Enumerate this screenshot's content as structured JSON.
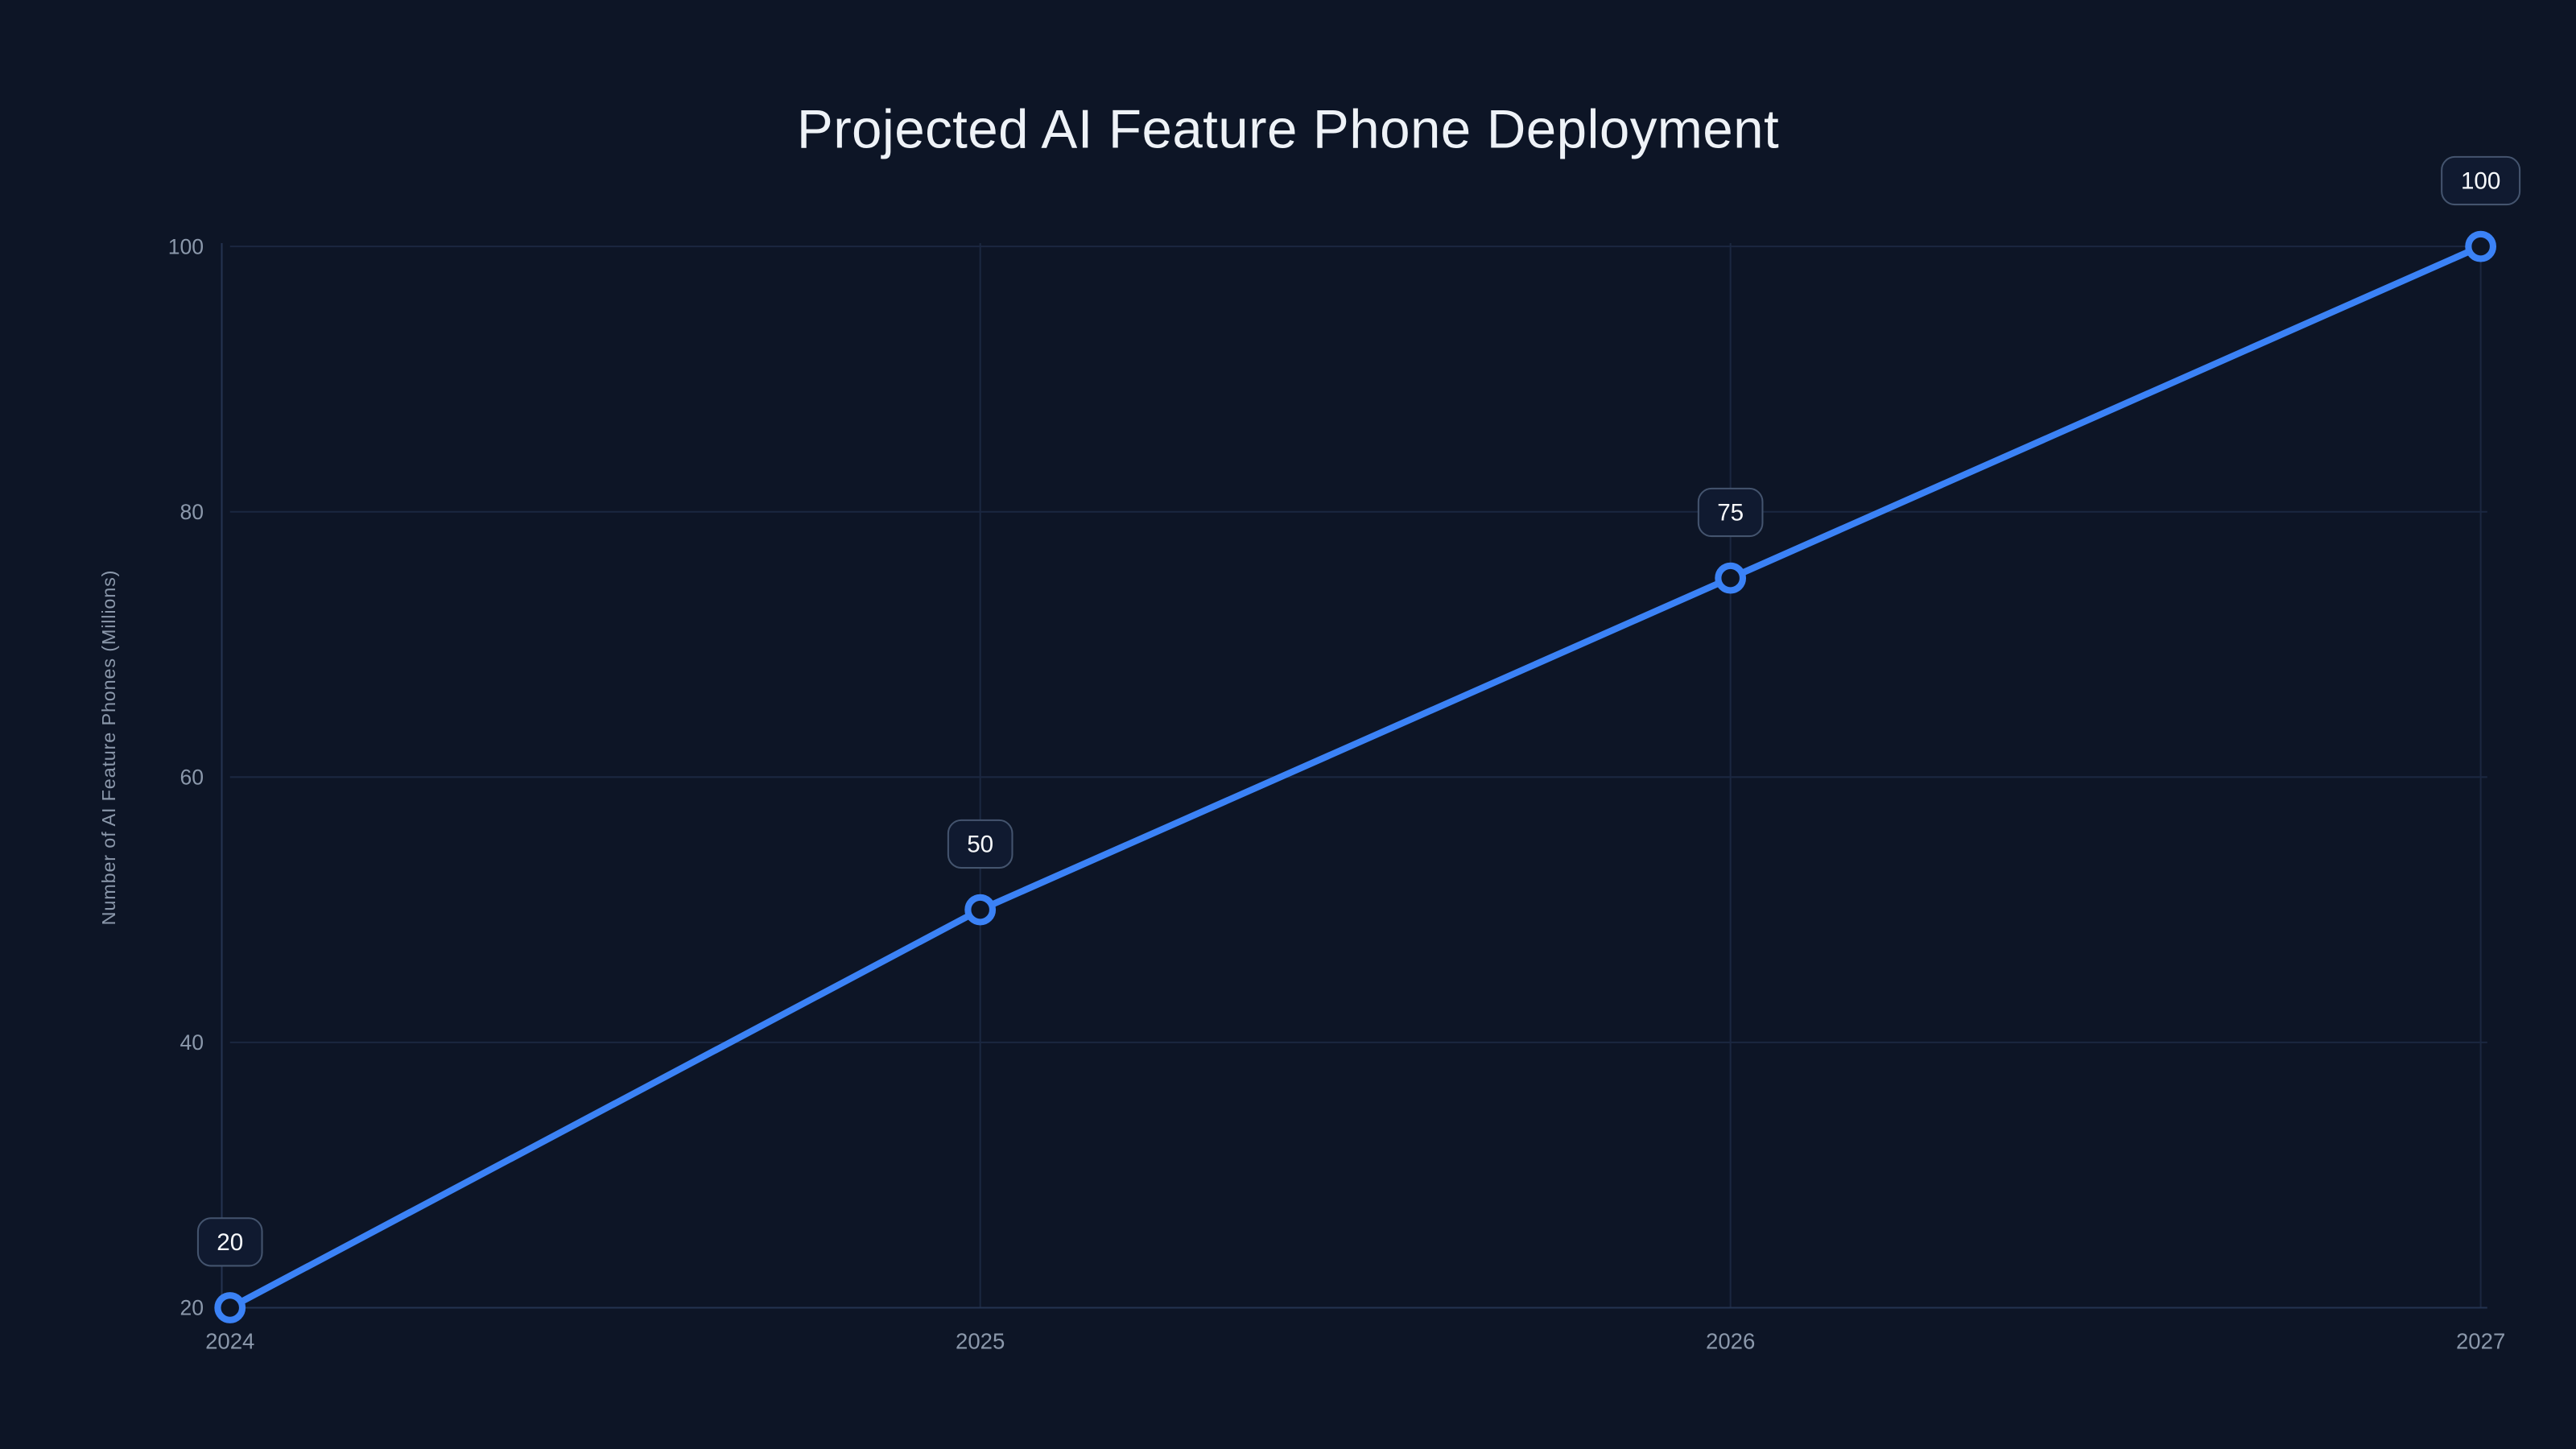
{
  "chart_data": {
    "type": "line",
    "title": "Projected AI Feature Phone Deployment",
    "ylabel": "Number of AI Feature Phones (Millions)",
    "xlabel": "",
    "x": [
      "2024",
      "2025",
      "2026",
      "2027"
    ],
    "series": [
      {
        "name": "AI Feature Phones",
        "values": [
          20,
          50,
          75,
          100
        ]
      }
    ],
    "point_labels": [
      "20",
      "50",
      "75",
      "100"
    ],
    "ylim": [
      20,
      100
    ],
    "yticks": [
      20,
      40,
      60,
      80,
      100
    ],
    "grid": true,
    "legend": false,
    "colors": {
      "background": "#0d1526",
      "line": "#3b82f6",
      "point_fill": "#0d1526",
      "grid": "#1b2740",
      "axis": "#243350",
      "tick_text": "#8b98ab",
      "title_text": "#eef2f7",
      "badge_fill": "#101a30",
      "badge_border": "#44546e",
      "badge_text": "#f8fafc"
    }
  }
}
